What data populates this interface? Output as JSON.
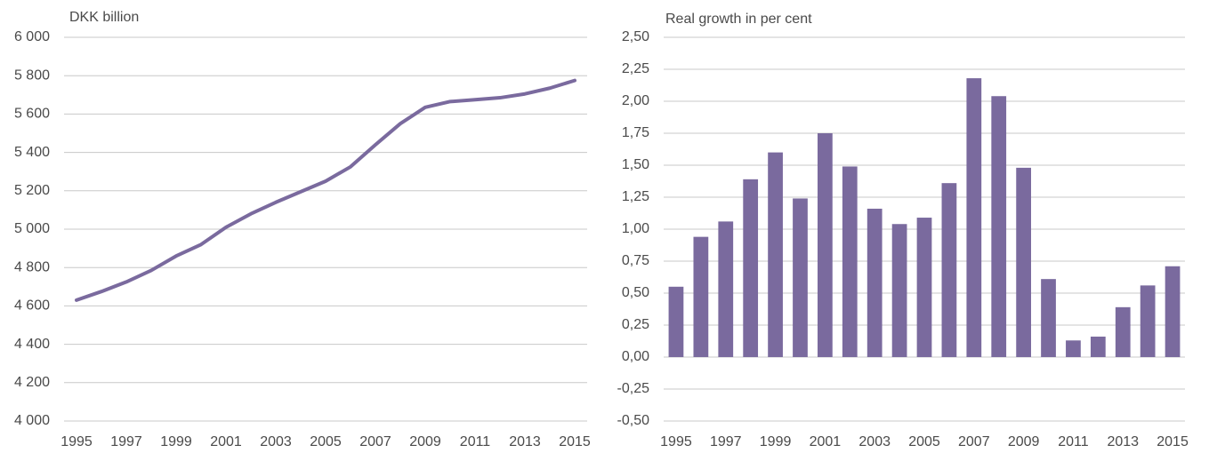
{
  "chart_data": [
    {
      "type": "line",
      "y_label": "DKK billion",
      "x": [
        1995,
        1996,
        1997,
        1998,
        1999,
        2000,
        2001,
        2002,
        2003,
        2004,
        2005,
        2006,
        2007,
        2008,
        2009,
        2010,
        2011,
        2012,
        2013,
        2014,
        2015
      ],
      "series": [
        {
          "color": "#7a6a9e",
          "values": [
            4630,
            4675,
            4725,
            4785,
            4860,
            4920,
            5010,
            5080,
            5140,
            5195,
            5250,
            5325,
            5440,
            5550,
            5635,
            5665,
            5675,
            5685,
            5705,
            5735,
            5775
          ]
        }
      ],
      "xlim": [
        1995,
        2015
      ],
      "xticks": [
        1995,
        1997,
        1999,
        2001,
        2003,
        2005,
        2007,
        2009,
        2011,
        2013,
        2015
      ],
      "ylim": [
        4000,
        6000
      ],
      "yticks": [
        {
          "value": 4000,
          "label": "4 000"
        },
        {
          "value": 4200,
          "label": "4 200"
        },
        {
          "value": 4400,
          "label": "4 400"
        },
        {
          "value": 4600,
          "label": "4 600"
        },
        {
          "value": 4800,
          "label": "4 800"
        },
        {
          "value": 5000,
          "label": "5 000"
        },
        {
          "value": 5200,
          "label": "5 200"
        },
        {
          "value": 5400,
          "label": "5 400"
        },
        {
          "value": 5600,
          "label": "5 600"
        },
        {
          "value": 5800,
          "label": "5 800"
        },
        {
          "value": 6000,
          "label": "6 000"
        }
      ],
      "grid": true
    },
    {
      "type": "bar",
      "y_label": "Real growth in per cent",
      "categories": [
        "1995",
        null,
        "1997",
        null,
        "1999",
        null,
        "2001",
        null,
        "2003",
        null,
        "2005",
        null,
        "2007",
        null,
        "2009",
        null,
        "2011",
        null,
        "2013",
        null,
        "2015"
      ],
      "values": [
        0.55,
        0.94,
        1.06,
        1.39,
        1.6,
        1.24,
        1.75,
        1.49,
        1.16,
        1.04,
        1.09,
        1.36,
        2.18,
        2.04,
        1.48,
        0.61,
        0.13,
        0.16,
        0.39,
        0.56,
        0.71
      ],
      "color": "#7a6a9e",
      "ylim": [
        -0.5,
        2.5
      ],
      "yticks": [
        {
          "value": -0.5,
          "label": "-0,50"
        },
        {
          "value": -0.25,
          "label": "-0,25"
        },
        {
          "value": 0,
          "label": "0,00"
        },
        {
          "value": 0.25,
          "label": "0,25"
        },
        {
          "value": 0.5,
          "label": "0,50"
        },
        {
          "value": 0.75,
          "label": "0,75"
        },
        {
          "value": 1,
          "label": "1,00"
        },
        {
          "value": 1.25,
          "label": "1,25"
        },
        {
          "value": 1.5,
          "label": "1,50"
        },
        {
          "value": 1.75,
          "label": "1,75"
        },
        {
          "value": 2,
          "label": "2,00"
        },
        {
          "value": 2.25,
          "label": "2,25"
        },
        {
          "value": 2.5,
          "label": "2,50"
        }
      ],
      "grid": true
    }
  ]
}
